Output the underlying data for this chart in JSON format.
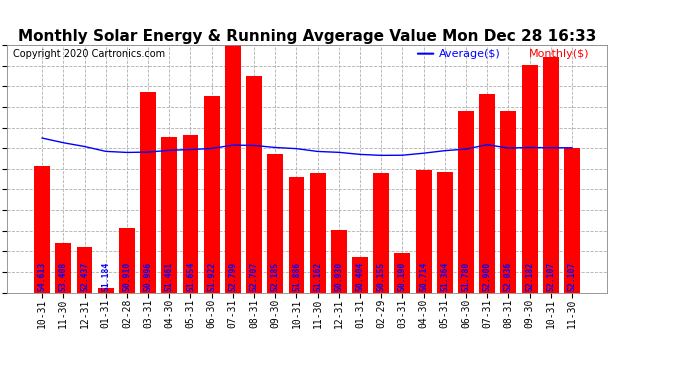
{
  "title": "Monthly Solar Energy & Running Avgerage Value Mon Dec 28 16:33",
  "copyright": "Copyright 2020 Cartronics.com",
  "legend_avg": "Average($)",
  "legend_monthly": "Monthly($)",
  "categories": [
    "10-31",
    "11-30",
    "12-31",
    "01-31",
    "02-28",
    "03-31",
    "04-30",
    "05-31",
    "06-30",
    "07-31",
    "08-31",
    "09-30",
    "10-31",
    "11-30",
    "12-31",
    "01-31",
    "02-29",
    "03-31",
    "04-30",
    "05-31",
    "06-30",
    "07-31",
    "08-31",
    "09-30",
    "10-31",
    "11-30"
  ],
  "monthly_values": [
    47.5,
    27.5,
    26.5,
    16.0,
    31.5,
    66.5,
    55.0,
    55.5,
    65.5,
    79.0,
    70.5,
    50.5,
    44.5,
    45.5,
    31.0,
    24.0,
    45.5,
    25.0,
    46.5,
    46.0,
    61.5,
    66.0,
    61.5,
    73.5,
    75.5,
    52.0
  ],
  "avg_values": [
    54.613,
    53.408,
    52.437,
    51.184,
    50.91,
    50.996,
    51.461,
    51.654,
    51.922,
    52.799,
    52.707,
    52.185,
    51.886,
    51.162,
    50.93,
    50.404,
    50.155,
    50.19,
    50.714,
    51.364,
    51.78,
    52.9,
    52.036,
    52.182,
    52.107,
    52.107
  ],
  "bar_color": "#ff0000",
  "avg_line_color": "#0000ff",
  "monthly_text_color": "#ff0000",
  "avg_text_color": "#0000ff",
  "bg_color": "#ffffff",
  "plot_bg_color": "#ffffff",
  "ylim": [
    14.86,
    78.56
  ],
  "yticks": [
    14.86,
    20.17,
    25.47,
    30.78,
    36.09,
    41.4,
    46.71,
    52.02,
    57.32,
    62.63,
    67.94,
    73.25,
    78.56
  ],
  "title_fontsize": 11,
  "tick_fontsize": 7,
  "bar_text_fontsize": 5.8,
  "copyright_fontsize": 7
}
